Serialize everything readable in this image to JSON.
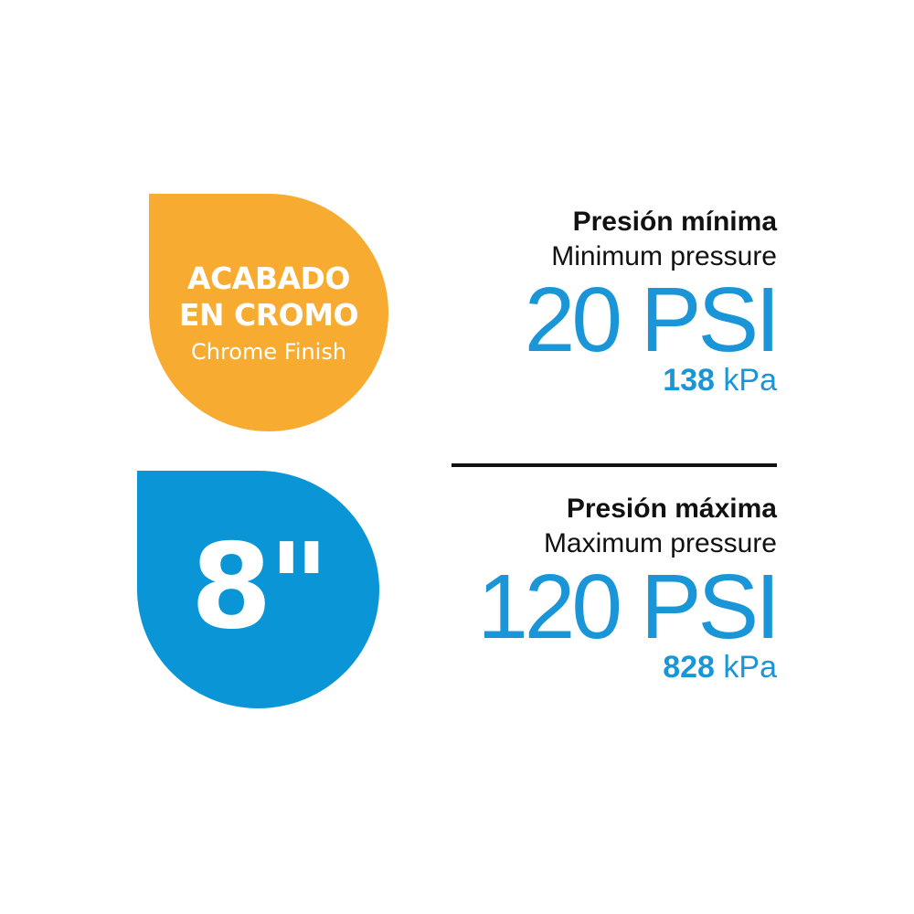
{
  "colors": {
    "orange": "#F7AC31",
    "blue": "#0A96D6",
    "text_blue": "#1A96D8"
  },
  "finish_badge": {
    "line1": "ACABADO",
    "line2": "EN CROMO",
    "english": "Chrome Finish"
  },
  "size_badge": {
    "value": "8\""
  },
  "min_pressure": {
    "label_es": "Presión mínima",
    "label_en": "Minimum pressure",
    "psi": "20 PSI",
    "kpa_value": "138",
    "kpa_unit": "kPa"
  },
  "max_pressure": {
    "label_es": "Presión máxima",
    "label_en": "Maximum pressure",
    "psi": "120 PSI",
    "kpa_value": "828",
    "kpa_unit": "kPa"
  }
}
